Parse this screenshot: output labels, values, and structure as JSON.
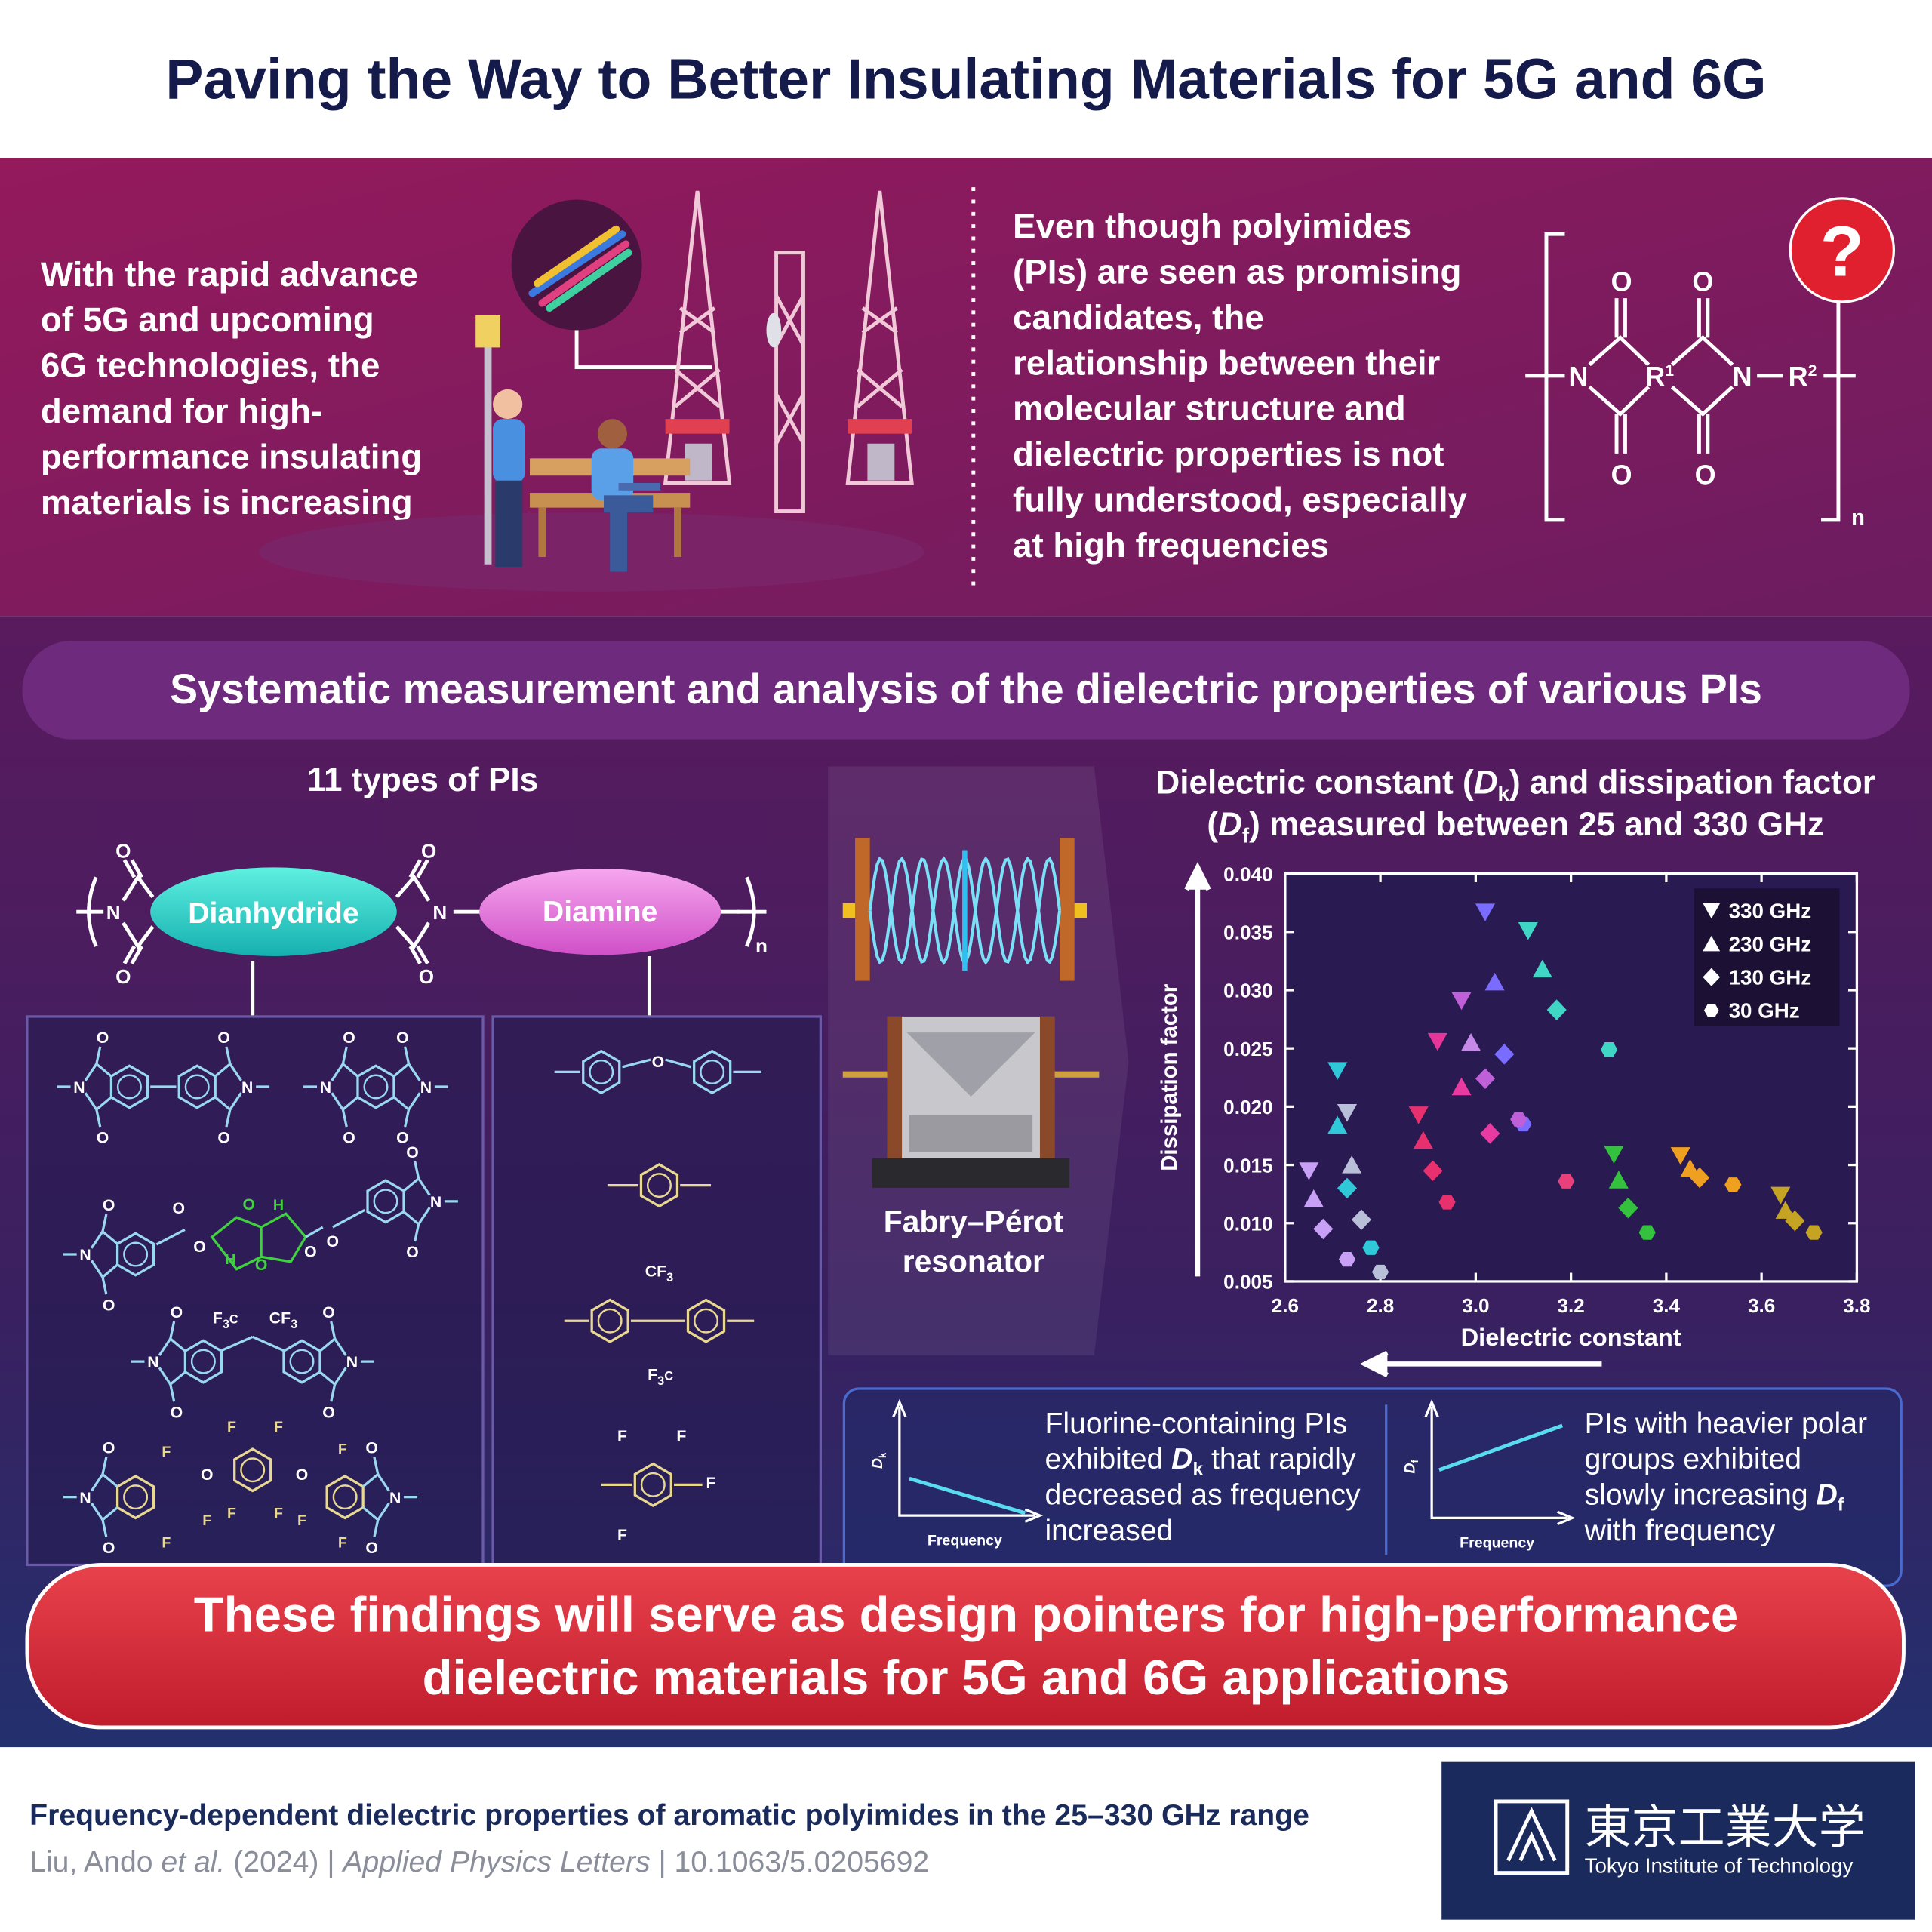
{
  "header": {
    "title": "Paving the Way to Better Insulating Materials for 5G and 6G"
  },
  "intro": {
    "left_lines": [
      "With the rapid advance",
      "of 5G and upcoming",
      "6G technologies, the",
      "demand for high-",
      "performance insulating",
      "materials is increasing"
    ],
    "right_lines": [
      "Even though polyimides",
      "(PIs) are seen as promising",
      "candidates, the",
      "relationship between their",
      "molecular structure and",
      "dielectric properties is not",
      "fully understood, especially",
      "at high frequencies"
    ]
  },
  "atoms": {
    "O": "O",
    "N": "N",
    "F": "F",
    "H": "H",
    "C": "C",
    "sub3": "3",
    "R": "R",
    "sup1": "1",
    "sup2": "2",
    "n": "n",
    "question": "?"
  },
  "study": {
    "heading": "Systematic measurement and analysis of the dielectric properties of various PIs",
    "types_label": "11 types of PIs",
    "dianhydride": "Dianhydride",
    "diamine": "Diamine",
    "resonator_lines": [
      "Fabry–Pérot",
      "resonator"
    ]
  },
  "chart_data": {
    "type": "scatter",
    "title": [
      [
        "Dielectric constant (",
        "D",
        "k",
        ") and dissipation factor"
      ],
      [
        "(",
        "D",
        "f",
        ") measured between 25 and 330 GHz"
      ]
    ],
    "xlabel": "Dielectric constant",
    "ylabel": "Dissipation factor",
    "xlim": [
      2.6,
      3.8
    ],
    "ylim": [
      0.005,
      0.04
    ],
    "xticks": [
      2.6,
      2.8,
      {
        "value": 3,
        "label": "3.0"
      },
      3.2,
      3.4,
      3.6,
      3.8
    ],
    "yticks": [
      0.005,
      {
        "value": 0.01,
        "label": "0.010"
      },
      0.015,
      {
        "value": 0.02,
        "label": "0.020"
      },
      0.025,
      {
        "value": 0.03,
        "label": "0.030"
      },
      0.035,
      {
        "value": 0.04,
        "label": "0.040"
      }
    ],
    "grid": false,
    "legend": "upper right",
    "legend_marker_color": "#ffffff",
    "series": [
      {
        "name": "330 GHz",
        "marker": "triangle-down",
        "x": [
          3.02,
          3.11,
          2.97,
          2.92,
          2.71,
          2.73,
          2.88,
          2.65,
          3.29,
          3.43,
          3.64
        ],
        "values": [
          0.0367,
          0.0351,
          0.0291,
          0.0256,
          0.0231,
          0.0195,
          0.0193,
          0.0145,
          0.0159,
          0.0158,
          0.0124
        ],
        "colors": [
          "#7a6cff",
          "#3fd6c6",
          "#c060d8",
          "#e8359a",
          "#30c8d8",
          "#b9bfd9",
          "#e8306e",
          "#c8a0f5",
          "#34c23e",
          "#f0a020",
          "#c4a422"
        ]
      },
      {
        "name": "230 GHz",
        "marker": "triangle-up",
        "x": [
          3.04,
          3.14,
          2.99,
          2.97,
          2.71,
          2.74,
          2.66,
          2.89,
          3.3,
          3.45,
          3.65
        ],
        "values": [
          0.0307,
          0.0318,
          0.0255,
          0.0217,
          0.0184,
          0.015,
          0.0121,
          0.0171,
          0.0137,
          0.0147,
          0.0111
        ],
        "colors": [
          "#7a6cff",
          "#3fd6c6",
          "#c58ae8",
          "#e83aa0",
          "#30c8d8",
          "#b9bfd9",
          "#c8a0f5",
          "#e8306e",
          "#34c23e",
          "#f0a020",
          "#c4a422"
        ]
      },
      {
        "name": "130 GHz",
        "marker": "diamond",
        "x": [
          3.17,
          3.06,
          3.02,
          3.03,
          2.73,
          2.76,
          2.68,
          2.91,
          3.32,
          3.47,
          3.67
        ],
        "values": [
          0.0283,
          0.0245,
          0.0224,
          0.0177,
          0.013,
          0.0103,
          0.0095,
          0.0145,
          0.0113,
          0.0139,
          0.0102
        ],
        "colors": [
          "#3fd6c6",
          "#7a6cff",
          "#c060d8",
          "#e83aa0",
          "#30c8d8",
          "#b9bfd9",
          "#c8a0f5",
          "#e8306e",
          "#34c23e",
          "#f0a020",
          "#c4a422"
        ]
      },
      {
        "name": "30 GHz",
        "marker": "hexagon",
        "x": [
          3.28,
          3.1,
          3.09,
          3.19,
          2.94,
          2.78,
          2.8,
          2.73,
          3.36,
          3.54,
          3.71
        ],
        "values": [
          0.0249,
          0.0185,
          0.0189,
          0.0136,
          0.0118,
          0.0079,
          0.0058,
          0.0069,
          0.0092,
          0.0133,
          0.0092
        ],
        "colors": [
          "#3fd6c6",
          "#7a6cff",
          "#c060d8",
          "#e8407a",
          "#e8306e",
          "#30c8d8",
          "#b9bfd9",
          "#c8a0f5",
          "#34c23e",
          "#f0a020",
          "#c4a422"
        ]
      }
    ]
  },
  "findings": [
    {
      "y_label": [
        "D",
        "k"
      ],
      "x_label": "Frequency",
      "lines": [
        [
          "Fluorine-containing PIs"
        ],
        [
          "exhibited ",
          "D",
          "k",
          " that rapidly"
        ],
        [
          "decreased as frequency"
        ],
        [
          "increased"
        ]
      ]
    },
    {
      "y_label": [
        "D",
        "f"
      ],
      "x_label": "Frequency",
      "lines": [
        [
          "PIs with heavier polar"
        ],
        [
          "groups exhibited"
        ],
        [
          "slowly increasing ",
          "D",
          "f"
        ],
        [
          "with frequency"
        ]
      ]
    }
  ],
  "conclusion": {
    "lines": [
      "These findings will serve as design pointers for high-performance",
      "dielectric materials for 5G and 6G applications"
    ]
  },
  "citation": {
    "title": "Frequency-dependent dielectric properties of aromatic polyimides in the 25–330 GHz range",
    "authors": "Liu, Ando ",
    "et_al": "et al.",
    "year": " (2024) | ",
    "journal": "Applied Physics Letters",
    "doi": " | 10.1063/5.0205692"
  },
  "logo": {
    "name_ja": "東京工業大学",
    "name_en": "Tokyo Institute of Technology"
  }
}
